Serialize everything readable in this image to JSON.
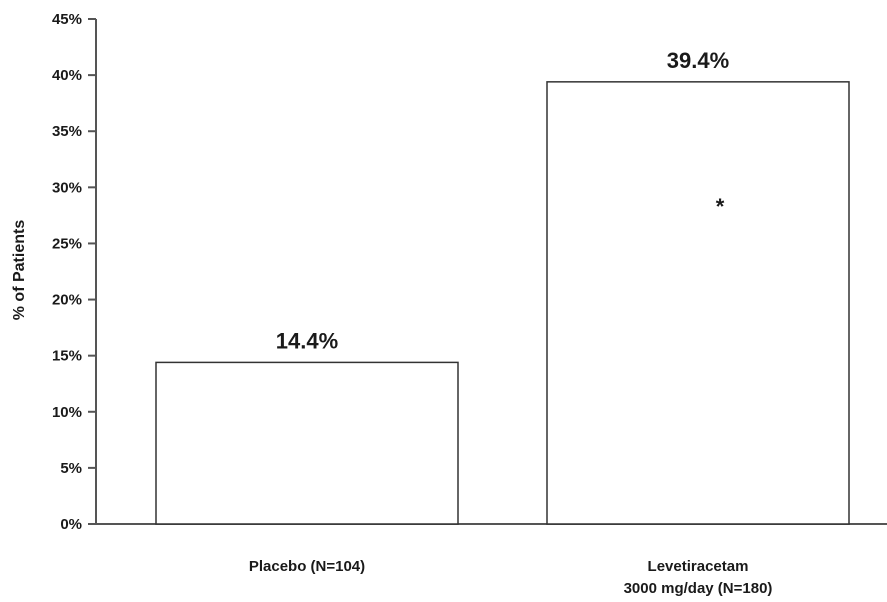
{
  "chart_data": {
    "type": "bar",
    "categories": [
      [
        "Placebo (N=104)"
      ],
      [
        "Levetiracetam",
        "3000 mg/day (N=180)"
      ]
    ],
    "values": [
      14.4,
      39.4
    ],
    "data_labels": [
      "14.4%",
      "39.4%"
    ],
    "annotation": "*",
    "ylabel": "% of Patients",
    "xlabel": "",
    "title": "",
    "ylim": [
      0,
      45
    ],
    "yticks": [
      0,
      5,
      10,
      15,
      20,
      25,
      30,
      35,
      40,
      45
    ],
    "ytick_labels": [
      "0%",
      "5%",
      "10%",
      "15%",
      "20%",
      "25%",
      "30%",
      "35%",
      "40%",
      "45%"
    ],
    "grid": false,
    "legend": "none",
    "colors": {
      "bar_fill": "#ffffff",
      "bar_stroke": "#333333",
      "axis": "#555555"
    }
  }
}
